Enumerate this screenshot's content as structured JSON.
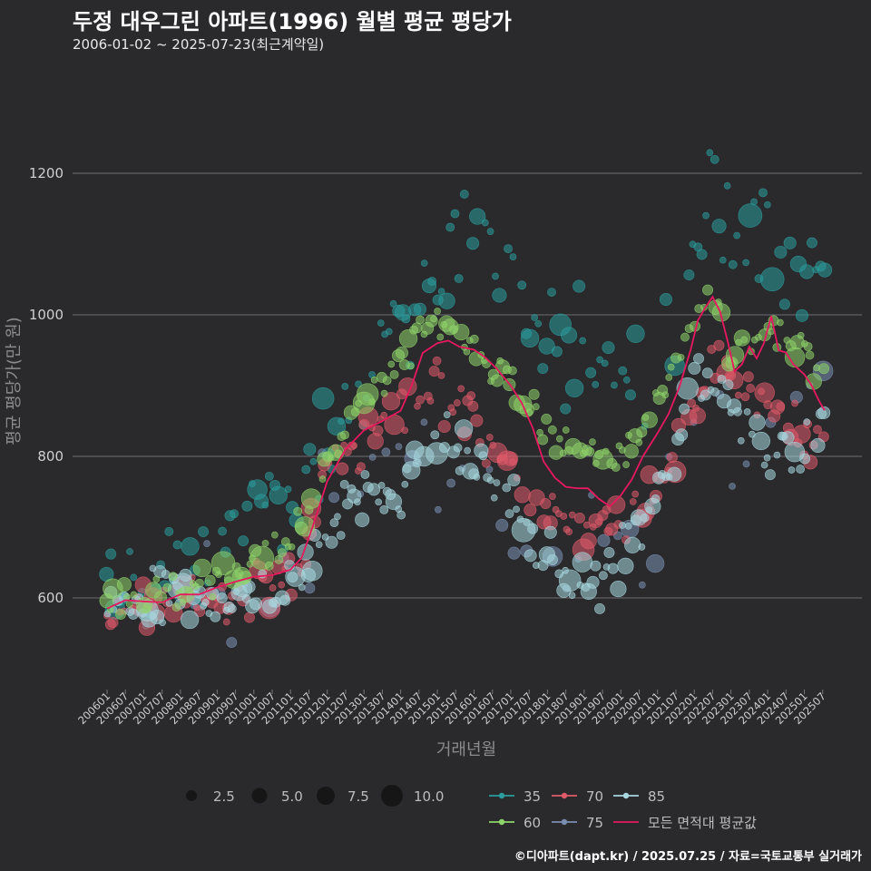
{
  "header": {
    "title": "두정 대우그린 아파트(1996) 월별 평균 평당가",
    "subtitle": "2006-01-02 ~ 2025-07-23(최근계약일)"
  },
  "footer": {
    "credit": "©디아파트(dapt.kr) / 2025.07.25 / 자료=국토교통부 실거래가"
  },
  "chart_data": {
    "type": "scatter",
    "title": "두정 대우그린 아파트(1996) 월별 평균 평당가",
    "xlabel": "거래년월",
    "ylabel": "평균 평당가(만 원)",
    "ylim": [
      450,
      1330
    ],
    "yticks": [
      600,
      800,
      1000,
      1200
    ],
    "x_start": "2006-01",
    "x_end": "2025-07",
    "xticks": [
      "200601",
      "200607",
      "200701",
      "200707",
      "200801",
      "200807",
      "200901",
      "200907",
      "201001",
      "201007",
      "201101",
      "201107",
      "201201",
      "201207",
      "201301",
      "201307",
      "201401",
      "201407",
      "201501",
      "201507",
      "201601",
      "201607",
      "201701",
      "201707",
      "201801",
      "201807",
      "201901",
      "201907",
      "202001",
      "202007",
      "202101",
      "202107",
      "202201",
      "202207",
      "202301",
      "202307",
      "202401",
      "202407",
      "202501",
      "202507"
    ],
    "size_legend": {
      "title": "",
      "values": [
        2.5,
        5.0,
        7.5,
        10.0
      ],
      "labels": [
        "2.5",
        "5.0",
        "7.5",
        "10.0"
      ]
    },
    "series": [
      {
        "name": "35",
        "color": "#2a9d9d",
        "knots": [
          [
            2006.0,
            600
          ],
          [
            2008.0,
            640
          ],
          [
            2010.0,
            700
          ],
          [
            2011.5,
            760
          ],
          [
            2012.5,
            880
          ],
          [
            2013.5,
            960
          ],
          [
            2014.5,
            1020
          ],
          [
            2015.5,
            1120
          ],
          [
            2016.5,
            1080
          ],
          [
            2017.5,
            950
          ],
          [
            2018.5,
            960
          ],
          [
            2019.5,
            940
          ],
          [
            2020.5,
            930
          ],
          [
            2021.5,
            1000
          ],
          [
            2022.5,
            1150
          ],
          [
            2023.5,
            1100
          ],
          [
            2024.5,
            1080
          ],
          [
            2025.5,
            1050
          ]
        ],
        "sparse_start": 2006.0,
        "spread": 55
      },
      {
        "name": "60",
        "color": "#8fd46a",
        "knots": [
          [
            2006.0,
            590
          ],
          [
            2007.0,
            600
          ],
          [
            2008.0,
            610
          ],
          [
            2009.0,
            630
          ],
          [
            2010.0,
            650
          ],
          [
            2011.0,
            680
          ],
          [
            2011.5,
            720
          ],
          [
            2012.0,
            790
          ],
          [
            2012.5,
            850
          ],
          [
            2013.0,
            880
          ],
          [
            2013.5,
            905
          ],
          [
            2014.0,
            940
          ],
          [
            2014.5,
            975
          ],
          [
            2015.0,
            985
          ],
          [
            2015.5,
            975
          ],
          [
            2016.0,
            955
          ],
          [
            2016.5,
            930
          ],
          [
            2017.0,
            905
          ],
          [
            2017.5,
            870
          ],
          [
            2018.0,
            840
          ],
          [
            2018.5,
            815
          ],
          [
            2019.0,
            800
          ],
          [
            2019.5,
            790
          ],
          [
            2020.0,
            800
          ],
          [
            2020.5,
            830
          ],
          [
            2021.0,
            880
          ],
          [
            2021.5,
            930
          ],
          [
            2022.0,
            990
          ],
          [
            2022.3,
            1030
          ],
          [
            2022.6,
            1010
          ],
          [
            2023.0,
            950
          ],
          [
            2023.5,
            960
          ],
          [
            2024.0,
            975
          ],
          [
            2024.5,
            960
          ],
          [
            2025.0,
            950
          ],
          [
            2025.5,
            930
          ]
        ],
        "sparse_start": 2006.0,
        "spread": 18
      },
      {
        "name": "70",
        "color": "#e05a6a",
        "knots": [
          [
            2006.0,
            580
          ],
          [
            2008.0,
            590
          ],
          [
            2010.0,
            620
          ],
          [
            2011.0,
            640
          ],
          [
            2011.5,
            680
          ],
          [
            2012.0,
            790
          ],
          [
            2013.0,
            820
          ],
          [
            2014.0,
            860
          ],
          [
            2015.0,
            900
          ],
          [
            2016.0,
            860
          ],
          [
            2017.0,
            790
          ],
          [
            2018.0,
            700
          ],
          [
            2019.0,
            700
          ],
          [
            2020.0,
            720
          ],
          [
            2021.0,
            760
          ],
          [
            2022.0,
            870
          ],
          [
            2022.5,
            930
          ],
          [
            2023.0,
            890
          ],
          [
            2023.5,
            900
          ],
          [
            2024.0,
            870
          ],
          [
            2024.5,
            850
          ],
          [
            2025.5,
            810
          ]
        ],
        "sparse_start": 2006.0,
        "spread": 30
      },
      {
        "name": "75",
        "color": "#7a8fb0",
        "knots": [
          [
            2006.0,
            600
          ],
          [
            2010.0,
            630
          ],
          [
            2012.0,
            700
          ],
          [
            2014.0,
            760
          ],
          [
            2016.0,
            800
          ],
          [
            2018.0,
            680
          ],
          [
            2020.0,
            660
          ],
          [
            2022.0,
            860
          ],
          [
            2024.0,
            800
          ],
          [
            2025.5,
            820
          ]
        ],
        "sparse_start": 2008.0,
        "spread": 60
      },
      {
        "name": "85",
        "color": "#a8d8e0",
        "knots": [
          [
            2006.0,
            585
          ],
          [
            2008.0,
            600
          ],
          [
            2010.0,
            610
          ],
          [
            2011.0,
            615
          ],
          [
            2012.0,
            700
          ],
          [
            2012.5,
            740
          ],
          [
            2013.0,
            740
          ],
          [
            2013.5,
            730
          ],
          [
            2014.0,
            760
          ],
          [
            2014.5,
            800
          ],
          [
            2015.0,
            825
          ],
          [
            2015.5,
            810
          ],
          [
            2016.0,
            800
          ],
          [
            2016.5,
            760
          ],
          [
            2017.0,
            730
          ],
          [
            2017.5,
            690
          ],
          [
            2018.0,
            660
          ],
          [
            2018.5,
            630
          ],
          [
            2019.0,
            625
          ],
          [
            2019.5,
            640
          ],
          [
            2020.0,
            650
          ],
          [
            2020.5,
            700
          ],
          [
            2021.0,
            750
          ],
          [
            2021.5,
            810
          ],
          [
            2022.0,
            920
          ],
          [
            2022.5,
            900
          ],
          [
            2023.0,
            880
          ],
          [
            2023.5,
            850
          ],
          [
            2024.0,
            800
          ],
          [
            2024.5,
            810
          ],
          [
            2025.0,
            800
          ],
          [
            2025.5,
            870
          ]
        ],
        "sparse_start": 2006.0,
        "spread": 28
      },
      {
        "name": "모든 면적대 평균값",
        "color": "#e8185e",
        "line": [
          [
            2006.0,
            585
          ],
          [
            2006.5,
            590
          ],
          [
            2007.0,
            595
          ],
          [
            2007.5,
            600
          ],
          [
            2008.0,
            605
          ],
          [
            2008.5,
            608
          ],
          [
            2009.0,
            615
          ],
          [
            2009.5,
            622
          ],
          [
            2010.0,
            630
          ],
          [
            2010.5,
            635
          ],
          [
            2011.0,
            640
          ],
          [
            2011.3,
            660
          ],
          [
            2011.6,
            700
          ],
          [
            2012.0,
            770
          ],
          [
            2012.5,
            810
          ],
          [
            2013.0,
            830
          ],
          [
            2013.5,
            850
          ],
          [
            2014.0,
            870
          ],
          [
            2014.3,
            900
          ],
          [
            2014.6,
            940
          ],
          [
            2015.0,
            960
          ],
          [
            2015.3,
            965
          ],
          [
            2015.6,
            955
          ],
          [
            2016.0,
            950
          ],
          [
            2016.3,
            940
          ],
          [
            2016.6,
            920
          ],
          [
            2017.0,
            900
          ],
          [
            2017.3,
            880
          ],
          [
            2017.6,
            840
          ],
          [
            2017.9,
            790
          ],
          [
            2018.2,
            770
          ],
          [
            2018.5,
            760
          ],
          [
            2018.8,
            755
          ],
          [
            2019.1,
            750
          ],
          [
            2019.4,
            740
          ],
          [
            2019.7,
            730
          ],
          [
            2020.0,
            745
          ],
          [
            2020.3,
            770
          ],
          [
            2020.6,
            800
          ],
          [
            2021.0,
            830
          ],
          [
            2021.3,
            860
          ],
          [
            2021.6,
            900
          ],
          [
            2021.9,
            950
          ],
          [
            2022.1,
            990
          ],
          [
            2022.3,
            1010
          ],
          [
            2022.5,
            1020
          ],
          [
            2022.7,
            1005
          ],
          [
            2022.9,
            960
          ],
          [
            2023.1,
            920
          ],
          [
            2023.3,
            935
          ],
          [
            2023.5,
            955
          ],
          [
            2023.7,
            945
          ],
          [
            2023.9,
            960
          ],
          [
            2024.1,
            1005
          ],
          [
            2024.3,
            950
          ],
          [
            2024.5,
            945
          ],
          [
            2024.7,
            930
          ],
          [
            2025.0,
            920
          ],
          [
            2025.2,
            900
          ],
          [
            2025.4,
            880
          ],
          [
            2025.55,
            865
          ]
        ]
      }
    ]
  }
}
